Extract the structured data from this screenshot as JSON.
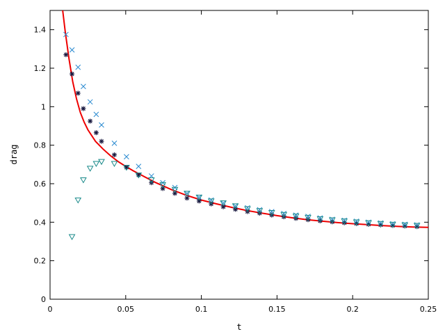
{
  "chart_data": {
    "type": "scatter",
    "title": "",
    "xlabel": "t",
    "ylabel": "drag",
    "xlim": [
      0,
      0.25
    ],
    "ylim": [
      0,
      1.5
    ],
    "grid": false,
    "x_ticks": [
      "0",
      "0.05",
      "0.1",
      "0.15",
      "0.2",
      "0.25"
    ],
    "x_tick_values": [
      0,
      0.05,
      0.1,
      0.15,
      0.2,
      0.25
    ],
    "y_ticks": [
      "0",
      "0.2",
      "0.4",
      "0.6",
      "0.8",
      "1",
      "1.2",
      "1.4"
    ],
    "y_tick_values": [
      0,
      0.2,
      0.4,
      0.6,
      0.8,
      1.0,
      1.2,
      1.4
    ],
    "series": [
      {
        "marker": "line",
        "color": "#ee0000",
        "points": [
          [
            0.0075,
            1.55
          ],
          [
            0.0085,
            1.49
          ],
          [
            0.01,
            1.39
          ],
          [
            0.0125,
            1.25
          ],
          [
            0.015,
            1.13
          ],
          [
            0.0175,
            1.04
          ],
          [
            0.02,
            0.97
          ],
          [
            0.0225,
            0.92
          ],
          [
            0.025,
            0.88
          ],
          [
            0.03,
            0.82
          ],
          [
            0.035,
            0.78
          ],
          [
            0.04,
            0.745
          ],
          [
            0.045,
            0.715
          ],
          [
            0.05,
            0.69
          ],
          [
            0.055,
            0.667
          ],
          [
            0.06,
            0.646
          ],
          [
            0.07,
            0.605
          ],
          [
            0.08,
            0.57
          ],
          [
            0.09,
            0.54
          ],
          [
            0.1,
            0.515
          ],
          [
            0.11,
            0.495
          ],
          [
            0.12,
            0.477
          ],
          [
            0.13,
            0.461
          ],
          [
            0.14,
            0.447
          ],
          [
            0.15,
            0.434
          ],
          [
            0.16,
            0.423
          ],
          [
            0.17,
            0.413
          ],
          [
            0.18,
            0.405
          ],
          [
            0.19,
            0.398
          ],
          [
            0.2,
            0.392
          ],
          [
            0.21,
            0.387
          ],
          [
            0.22,
            0.382
          ],
          [
            0.23,
            0.378
          ],
          [
            0.24,
            0.375
          ],
          [
            0.25,
            0.373
          ]
        ]
      },
      {
        "marker": "asterisk",
        "color": "#1a1a40",
        "points": [
          [
            0.0105,
            1.27
          ],
          [
            0.0145,
            1.17
          ],
          [
            0.0185,
            1.07
          ],
          [
            0.022,
            0.99
          ],
          [
            0.0265,
            0.925
          ],
          [
            0.0305,
            0.865
          ],
          [
            0.034,
            0.82
          ],
          [
            0.0425,
            0.75
          ],
          [
            0.0505,
            0.685
          ],
          [
            0.0585,
            0.645
          ],
          [
            0.067,
            0.605
          ],
          [
            0.0745,
            0.575
          ],
          [
            0.0825,
            0.55
          ],
          [
            0.0905,
            0.525
          ],
          [
            0.0985,
            0.51
          ],
          [
            0.1065,
            0.495
          ],
          [
            0.1145,
            0.48
          ],
          [
            0.1225,
            0.467
          ],
          [
            0.1305,
            0.455
          ],
          [
            0.1385,
            0.447
          ],
          [
            0.1465,
            0.437
          ],
          [
            0.1545,
            0.428
          ],
          [
            0.1625,
            0.42
          ],
          [
            0.1705,
            0.413
          ],
          [
            0.1785,
            0.407
          ],
          [
            0.1865,
            0.402
          ],
          [
            0.1945,
            0.397
          ],
          [
            0.2025,
            0.393
          ],
          [
            0.2105,
            0.389
          ],
          [
            0.2185,
            0.386
          ],
          [
            0.2265,
            0.383
          ],
          [
            0.2345,
            0.38
          ],
          [
            0.2425,
            0.377
          ]
        ]
      },
      {
        "marker": "x",
        "color": "#2a8ad0",
        "points": [
          [
            0.0105,
            1.375
          ],
          [
            0.0145,
            1.295
          ],
          [
            0.0185,
            1.205
          ],
          [
            0.022,
            1.105
          ],
          [
            0.0265,
            1.025
          ],
          [
            0.0305,
            0.96
          ],
          [
            0.034,
            0.905
          ],
          [
            0.0425,
            0.81
          ],
          [
            0.0505,
            0.74
          ],
          [
            0.0585,
            0.69
          ],
          [
            0.067,
            0.64
          ],
          [
            0.0745,
            0.605
          ],
          [
            0.0825,
            0.58
          ],
          [
            0.0905,
            0.55
          ],
          [
            0.0985,
            0.53
          ],
          [
            0.1065,
            0.515
          ],
          [
            0.1145,
            0.5
          ],
          [
            0.1225,
            0.485
          ],
          [
            0.1305,
            0.475
          ],
          [
            0.1385,
            0.465
          ],
          [
            0.1465,
            0.455
          ],
          [
            0.1545,
            0.445
          ],
          [
            0.1625,
            0.437
          ],
          [
            0.1705,
            0.43
          ],
          [
            0.1785,
            0.422
          ],
          [
            0.1865,
            0.415
          ],
          [
            0.1945,
            0.41
          ],
          [
            0.2025,
            0.405
          ],
          [
            0.2105,
            0.4
          ],
          [
            0.2185,
            0.396
          ],
          [
            0.2265,
            0.392
          ],
          [
            0.2345,
            0.389
          ],
          [
            0.2425,
            0.386
          ]
        ]
      },
      {
        "marker": "triangle-down",
        "color": "#1a8a8a",
        "points": [
          [
            0.0145,
            0.325
          ],
          [
            0.0185,
            0.515
          ],
          [
            0.022,
            0.62
          ],
          [
            0.0265,
            0.68
          ],
          [
            0.0305,
            0.705
          ],
          [
            0.034,
            0.715
          ],
          [
            0.0425,
            0.705
          ],
          [
            0.0505,
            0.685
          ],
          [
            0.0585,
            0.645
          ],
          [
            0.067,
            0.62
          ],
          [
            0.0745,
            0.595
          ],
          [
            0.0825,
            0.57
          ],
          [
            0.0905,
            0.55
          ],
          [
            0.0985,
            0.53
          ],
          [
            0.1065,
            0.51
          ],
          [
            0.1145,
            0.5
          ],
          [
            0.1225,
            0.485
          ],
          [
            0.1305,
            0.47
          ],
          [
            0.1385,
            0.46
          ],
          [
            0.1465,
            0.45
          ],
          [
            0.1545,
            0.44
          ],
          [
            0.1625,
            0.432
          ],
          [
            0.1705,
            0.425
          ],
          [
            0.1785,
            0.418
          ],
          [
            0.1865,
            0.412
          ],
          [
            0.1945,
            0.406
          ],
          [
            0.2025,
            0.401
          ],
          [
            0.2105,
            0.397
          ],
          [
            0.2185,
            0.393
          ],
          [
            0.2265,
            0.389
          ],
          [
            0.2345,
            0.386
          ],
          [
            0.2425,
            0.383
          ]
        ]
      }
    ]
  }
}
